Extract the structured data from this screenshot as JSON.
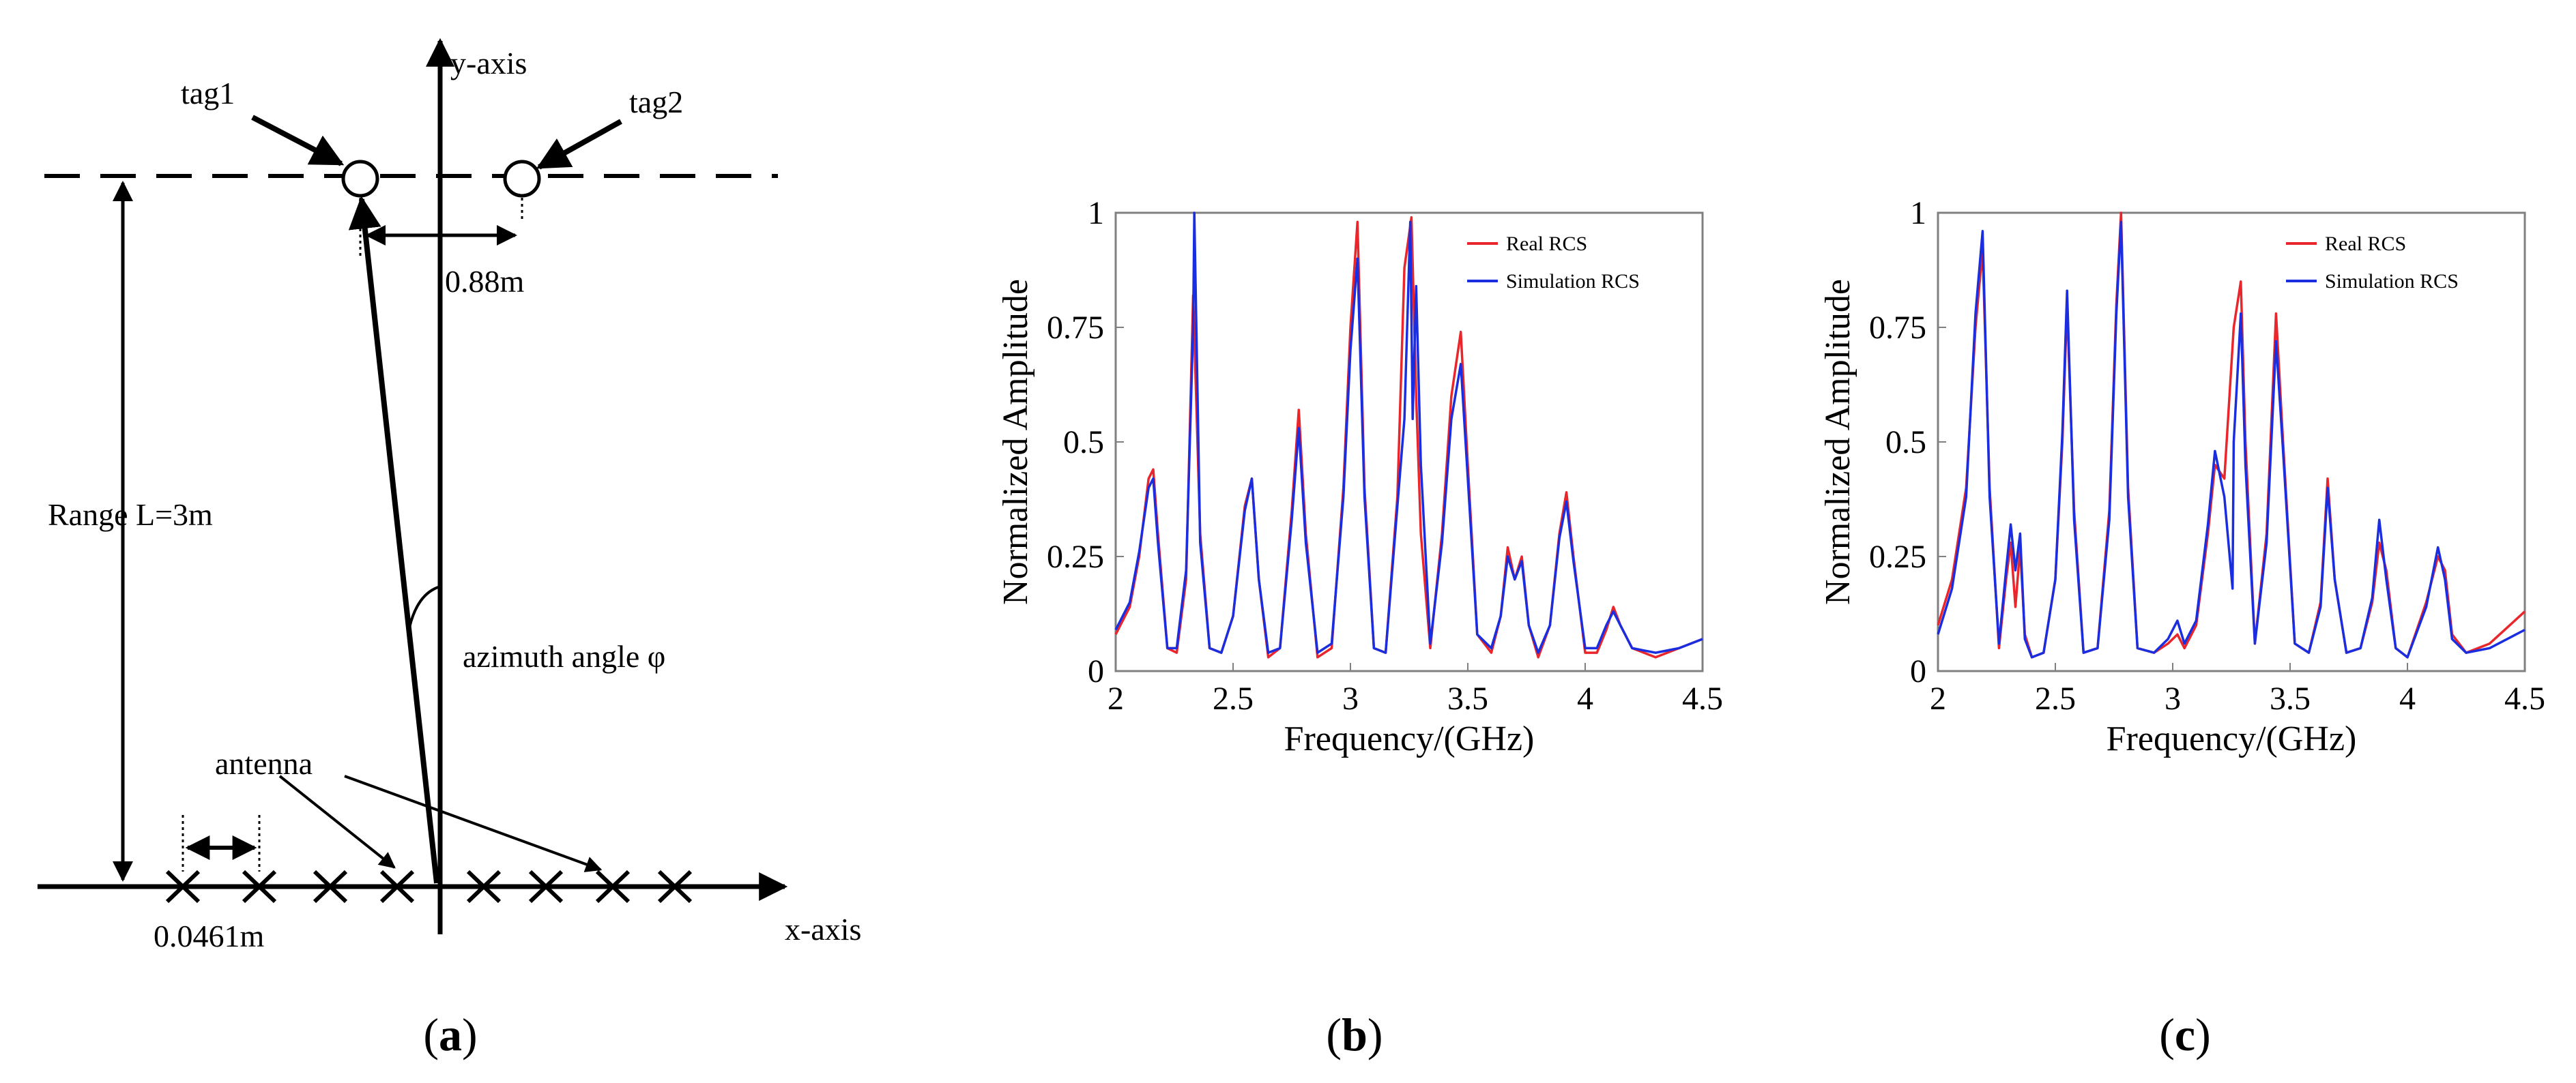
{
  "panel_a": {
    "y_axis_label": "y-axis",
    "x_axis_label": "x-axis",
    "tag1_label": "tag1",
    "tag2_label": "tag2",
    "tag_spacing_label": "0.88m",
    "range_label": "Range L=3m",
    "azimuth_label": "azimuth angle φ",
    "antenna_label": "antenna",
    "antenna_spacing_label": "0.0461m",
    "panel_letter": "a"
  },
  "panel_b_label": "b",
  "panel_c_label": "c",
  "colors": {
    "real": "#e8262b",
    "sim": "#1a2ee0",
    "axis": "#000000",
    "frame": "#808080"
  },
  "chart_data": [
    {
      "type": "line",
      "panel": "b",
      "title": "",
      "xlabel": "Frequency/(GHz)",
      "ylabel": "Normalized Amplitude",
      "xlim": [
        2,
        4.5
      ],
      "ylim": [
        0,
        1
      ],
      "xticks": [
        2,
        2.5,
        3,
        3.5,
        4,
        4.5
      ],
      "xtick_labels": [
        "2",
        "2.5",
        "3",
        "3.5",
        "4",
        "4.5"
      ],
      "yticks": [
        0,
        0.25,
        0.5,
        0.75,
        1
      ],
      "ytick_labels": [
        "0",
        "0.25",
        "0.5",
        "0.75",
        "1"
      ],
      "legend_position": "top-right",
      "series": [
        {
          "name": "Real RCS",
          "color": "#e8262b",
          "x": [
            2.0,
            2.06,
            2.1,
            2.14,
            2.16,
            2.18,
            2.22,
            2.26,
            2.3,
            2.33,
            2.36,
            2.4,
            2.45,
            2.5,
            2.55,
            2.58,
            2.61,
            2.65,
            2.7,
            2.75,
            2.78,
            2.81,
            2.86,
            2.92,
            2.97,
            3.0,
            3.03,
            3.06,
            3.1,
            3.15,
            3.2,
            3.23,
            3.26,
            3.28,
            3.3,
            3.34,
            3.39,
            3.43,
            3.47,
            3.5,
            3.54,
            3.6,
            3.64,
            3.67,
            3.7,
            3.73,
            3.76,
            3.8,
            3.85,
            3.89,
            3.92,
            3.95,
            4.0,
            4.05,
            4.09,
            4.12,
            4.15,
            4.2,
            4.3,
            4.4,
            4.5
          ],
          "y": [
            0.08,
            0.14,
            0.25,
            0.42,
            0.44,
            0.3,
            0.05,
            0.04,
            0.2,
            0.82,
            0.3,
            0.05,
            0.04,
            0.12,
            0.36,
            0.42,
            0.2,
            0.03,
            0.05,
            0.35,
            0.57,
            0.3,
            0.03,
            0.05,
            0.4,
            0.75,
            0.98,
            0.4,
            0.05,
            0.04,
            0.38,
            0.88,
            0.99,
            0.6,
            0.3,
            0.05,
            0.3,
            0.6,
            0.74,
            0.45,
            0.08,
            0.04,
            0.12,
            0.27,
            0.2,
            0.25,
            0.1,
            0.03,
            0.1,
            0.3,
            0.39,
            0.25,
            0.04,
            0.04,
            0.09,
            0.14,
            0.1,
            0.05,
            0.03,
            0.05,
            0.07
          ]
        },
        {
          "name": "Simulation RCS",
          "color": "#1a2ee0",
          "x": [
            2.0,
            2.06,
            2.1,
            2.14,
            2.16,
            2.18,
            2.22,
            2.26,
            2.3,
            2.33,
            2.335,
            2.36,
            2.4,
            2.45,
            2.5,
            2.55,
            2.58,
            2.61,
            2.65,
            2.7,
            2.75,
            2.78,
            2.81,
            2.86,
            2.92,
            2.97,
            3.0,
            3.03,
            3.06,
            3.1,
            3.15,
            3.2,
            3.23,
            3.255,
            3.265,
            3.28,
            3.3,
            3.34,
            3.39,
            3.43,
            3.47,
            3.5,
            3.54,
            3.6,
            3.64,
            3.67,
            3.7,
            3.73,
            3.76,
            3.8,
            3.85,
            3.89,
            3.92,
            3.95,
            4.0,
            4.05,
            4.09,
            4.12,
            4.15,
            4.2,
            4.3,
            4.4,
            4.5
          ],
          "y": [
            0.09,
            0.15,
            0.26,
            0.4,
            0.42,
            0.28,
            0.05,
            0.05,
            0.22,
            0.75,
            1.0,
            0.28,
            0.05,
            0.04,
            0.12,
            0.35,
            0.42,
            0.2,
            0.04,
            0.05,
            0.33,
            0.53,
            0.28,
            0.04,
            0.06,
            0.38,
            0.7,
            0.9,
            0.38,
            0.05,
            0.04,
            0.36,
            0.55,
            0.98,
            0.55,
            0.84,
            0.45,
            0.06,
            0.28,
            0.55,
            0.67,
            0.42,
            0.08,
            0.05,
            0.12,
            0.25,
            0.2,
            0.24,
            0.1,
            0.04,
            0.1,
            0.29,
            0.37,
            0.24,
            0.05,
            0.05,
            0.1,
            0.13,
            0.1,
            0.05,
            0.04,
            0.05,
            0.07
          ]
        }
      ]
    },
    {
      "type": "line",
      "panel": "c",
      "title": "",
      "xlabel": "Frequency/(GHz)",
      "ylabel": "Normalized Amplitude",
      "xlim": [
        2,
        4.5
      ],
      "ylim": [
        0,
        1
      ],
      "xticks": [
        2,
        2.5,
        3,
        3.5,
        4,
        4.5
      ],
      "xtick_labels": [
        "2",
        "2.5",
        "3",
        "3.5",
        "4",
        "4.5"
      ],
      "yticks": [
        0,
        0.25,
        0.5,
        0.75,
        1
      ],
      "ytick_labels": [
        "0",
        "0.25",
        "0.5",
        "0.75",
        "1"
      ],
      "legend_position": "top-right",
      "series": [
        {
          "name": "Real RCS",
          "color": "#e8262b",
          "x": [
            2.0,
            2.06,
            2.12,
            2.16,
            2.19,
            2.22,
            2.26,
            2.29,
            2.31,
            2.33,
            2.35,
            2.37,
            2.4,
            2.45,
            2.5,
            2.53,
            2.55,
            2.58,
            2.62,
            2.68,
            2.73,
            2.76,
            2.78,
            2.81,
            2.85,
            2.92,
            2.98,
            3.02,
            3.05,
            3.1,
            3.15,
            3.18,
            3.22,
            3.26,
            3.29,
            3.31,
            3.35,
            3.4,
            3.44,
            3.47,
            3.52,
            3.58,
            3.63,
            3.66,
            3.69,
            3.74,
            3.8,
            3.85,
            3.88,
            3.91,
            3.95,
            4.0,
            4.08,
            4.13,
            4.16,
            4.19,
            4.25,
            4.35,
            4.5
          ],
          "y": [
            0.1,
            0.2,
            0.4,
            0.75,
            0.92,
            0.4,
            0.05,
            0.2,
            0.28,
            0.14,
            0.27,
            0.08,
            0.03,
            0.04,
            0.2,
            0.5,
            0.8,
            0.35,
            0.04,
            0.05,
            0.35,
            0.8,
            1.0,
            0.4,
            0.05,
            0.04,
            0.06,
            0.08,
            0.05,
            0.1,
            0.3,
            0.45,
            0.42,
            0.75,
            0.85,
            0.5,
            0.06,
            0.3,
            0.78,
            0.5,
            0.06,
            0.04,
            0.15,
            0.42,
            0.2,
            0.04,
            0.05,
            0.15,
            0.28,
            0.22,
            0.05,
            0.03,
            0.15,
            0.25,
            0.22,
            0.08,
            0.04,
            0.06,
            0.13
          ]
        },
        {
          "name": "Simulation RCS",
          "color": "#1a2ee0",
          "x": [
            2.0,
            2.06,
            2.12,
            2.16,
            2.19,
            2.22,
            2.26,
            2.29,
            2.31,
            2.33,
            2.35,
            2.37,
            2.4,
            2.45,
            2.5,
            2.53,
            2.55,
            2.58,
            2.62,
            2.68,
            2.73,
            2.76,
            2.78,
            2.81,
            2.85,
            2.92,
            2.98,
            3.02,
            3.05,
            3.1,
            3.15,
            3.18,
            3.22,
            3.255,
            3.26,
            3.29,
            3.31,
            3.35,
            3.4,
            3.44,
            3.47,
            3.52,
            3.58,
            3.63,
            3.66,
            3.69,
            3.74,
            3.8,
            3.85,
            3.88,
            3.91,
            3.95,
            4.0,
            4.08,
            4.13,
            4.16,
            4.19,
            4.25,
            4.35,
            4.5
          ],
          "y": [
            0.08,
            0.18,
            0.38,
            0.78,
            0.96,
            0.38,
            0.06,
            0.22,
            0.32,
            0.22,
            0.3,
            0.07,
            0.03,
            0.04,
            0.2,
            0.52,
            0.83,
            0.33,
            0.04,
            0.05,
            0.33,
            0.78,
            0.98,
            0.38,
            0.05,
            0.04,
            0.07,
            0.11,
            0.06,
            0.11,
            0.32,
            0.48,
            0.38,
            0.18,
            0.5,
            0.78,
            0.45,
            0.06,
            0.28,
            0.72,
            0.48,
            0.06,
            0.04,
            0.14,
            0.4,
            0.2,
            0.04,
            0.05,
            0.16,
            0.33,
            0.2,
            0.05,
            0.03,
            0.14,
            0.27,
            0.2,
            0.07,
            0.04,
            0.05,
            0.09
          ]
        }
      ]
    }
  ]
}
